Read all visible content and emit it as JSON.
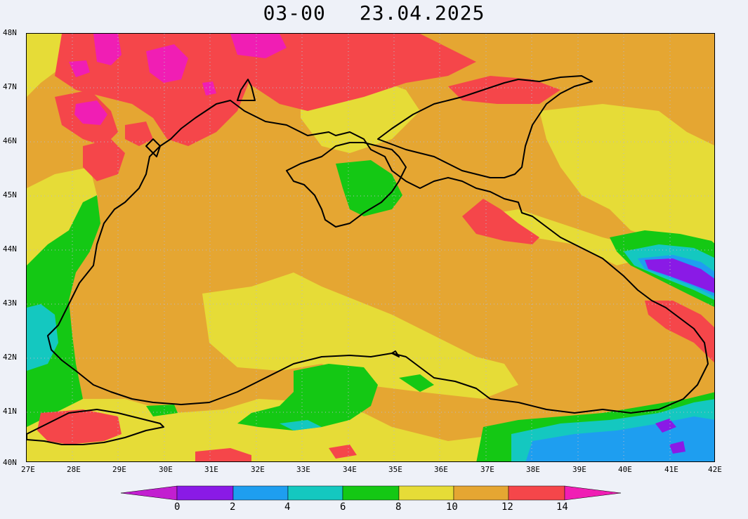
{
  "header": {
    "time_code": "03-00",
    "date": "23.04.2025"
  },
  "axes": {
    "lat_labels": [
      "48N",
      "47N",
      "46N",
      "45N",
      "44N",
      "43N",
      "42N",
      "41N",
      "40N"
    ],
    "lon_labels": [
      "27E",
      "28E",
      "29E",
      "30E",
      "31E",
      "32E",
      "33E",
      "34E",
      "35E",
      "36E",
      "37E",
      "38E",
      "39E",
      "40E",
      "41E",
      "42E"
    ]
  },
  "colorbar": {
    "labels": [
      "0",
      "2",
      "4",
      "6",
      "8",
      "10",
      "12",
      "14"
    ],
    "colors": [
      "#c21fd0",
      "#8a1ae6",
      "#1e9ef0",
      "#14c8c0",
      "#14c814",
      "#e6dc37",
      "#e5a632",
      "#f5464a",
      "#f01eb4"
    ]
  },
  "map_colors": {
    "sea": "#e5a632",
    "band_8_10": "#e6dc37",
    "band_6_8": "#14c814",
    "band_4_6": "#14c8c0",
    "band_2_4": "#1e9ef0",
    "band_0_2": "#8a1ae6",
    "band_12_14": "#f5464a",
    "band_14_plus": "#f01eb4",
    "coastline": "#000000",
    "grid": "#b8b8c8"
  }
}
